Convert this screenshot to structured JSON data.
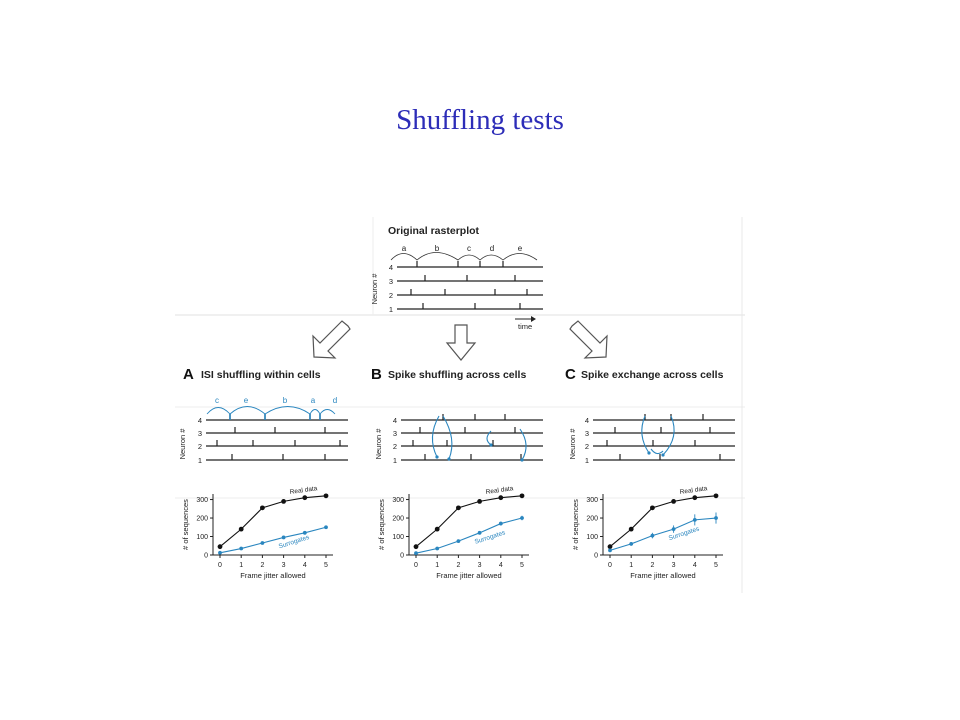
{
  "slide": {
    "title": "Shuffling tests"
  },
  "figure": {
    "top": {
      "title": "Original rasterplot",
      "isi_labels": [
        "a",
        "b",
        "c",
        "d",
        "e"
      ],
      "ylabel": "Neuron #",
      "neurons": [
        "4",
        "3",
        "2",
        "1"
      ],
      "time_label": "time"
    },
    "panels": [
      {
        "letter": "A",
        "title": "ISI shuffling within cells",
        "isi_labels": [
          "c",
          "e",
          "b",
          "a",
          "d"
        ],
        "ylabel": "Neuron #",
        "neurons": [
          "4",
          "3",
          "2",
          "1"
        ],
        "chart_ylabel": "# of sequences",
        "chart_xlabel": "Frame jitter allowed",
        "real_label": "Real data",
        "surr_label": "Surrogates"
      },
      {
        "letter": "B",
        "title": "Spike shuffling across cells",
        "ylabel": "Neuron #",
        "neurons": [
          "4",
          "3",
          "2",
          "1"
        ],
        "chart_ylabel": "# of sequences",
        "chart_xlabel": "Frame jitter allowed",
        "real_label": "Real data",
        "surr_label": "Surrogates"
      },
      {
        "letter": "C",
        "title": "Spike exchange across cells",
        "ylabel": "Neuron #",
        "neurons": [
          "4",
          "3",
          "2",
          "1"
        ],
        "chart_ylabel": "# of sequences",
        "chart_xlabel": "Frame jitter allowed",
        "real_label": "Real data",
        "surr_label": "Surrogates"
      }
    ]
  },
  "chart_data": [
    {
      "type": "line",
      "x": [
        0,
        1,
        2,
        3,
        4,
        5
      ],
      "xticks": [
        "0",
        "1",
        "2",
        "3",
        "4",
        "5"
      ],
      "yticks": [
        "0",
        "100",
        "200",
        "300"
      ],
      "ylim": [
        0,
        330
      ],
      "series": [
        {
          "name": "Real data",
          "values": [
            45,
            140,
            255,
            290,
            310,
            320
          ],
          "err": [
            0,
            0,
            0,
            0,
            0,
            0
          ],
          "color": "#111111"
        },
        {
          "name": "Surrogates",
          "values": [
            12,
            35,
            65,
            95,
            120,
            150
          ],
          "err": [
            2,
            3,
            4,
            5,
            6,
            7
          ],
          "color": "#2a86bf"
        }
      ]
    },
    {
      "type": "line",
      "x": [
        0,
        1,
        2,
        3,
        4,
        5
      ],
      "xticks": [
        "0",
        "1",
        "2",
        "3",
        "4",
        "5"
      ],
      "yticks": [
        "0",
        "100",
        "200",
        "300"
      ],
      "ylim": [
        0,
        330
      ],
      "series": [
        {
          "name": "Real data",
          "values": [
            45,
            140,
            255,
            290,
            310,
            320
          ],
          "err": [
            0,
            0,
            0,
            0,
            0,
            0
          ],
          "color": "#111111"
        },
        {
          "name": "Surrogates",
          "values": [
            10,
            35,
            75,
            120,
            170,
            200
          ],
          "err": [
            2,
            4,
            6,
            8,
            10,
            12
          ],
          "color": "#2a86bf"
        }
      ]
    },
    {
      "type": "line",
      "x": [
        0,
        1,
        2,
        3,
        4,
        5
      ],
      "xticks": [
        "0",
        "1",
        "2",
        "3",
        "4",
        "5"
      ],
      "yticks": [
        "0",
        "100",
        "200",
        "300"
      ],
      "ylim": [
        0,
        330
      ],
      "series": [
        {
          "name": "Real data",
          "values": [
            45,
            140,
            255,
            290,
            310,
            320
          ],
          "err": [
            0,
            0,
            0,
            0,
            0,
            0
          ],
          "color": "#111111"
        },
        {
          "name": "Surrogates",
          "values": [
            25,
            60,
            105,
            140,
            190,
            200
          ],
          "err": [
            5,
            10,
            15,
            20,
            30,
            30
          ],
          "color": "#2a86bf"
        }
      ]
    }
  ]
}
